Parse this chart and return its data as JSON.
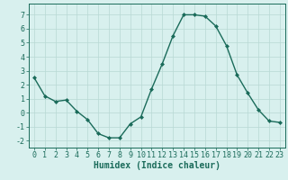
{
  "x": [
    0,
    1,
    2,
    3,
    4,
    5,
    6,
    7,
    8,
    9,
    10,
    11,
    12,
    13,
    14,
    15,
    16,
    17,
    18,
    19,
    20,
    21,
    22,
    23
  ],
  "y": [
    2.5,
    1.2,
    0.8,
    0.9,
    0.1,
    -0.5,
    -1.5,
    -1.8,
    -1.8,
    -0.8,
    -0.3,
    1.7,
    3.5,
    5.5,
    7.0,
    7.0,
    6.9,
    6.2,
    4.8,
    2.7,
    1.4,
    0.2,
    -0.6,
    -0.7
  ],
  "line_color": "#1a6b5a",
  "marker": "D",
  "markersize": 2,
  "linewidth": 1.0,
  "bg_color": "#d8f0ee",
  "grid_color": "#b8d8d4",
  "xlabel": "Humidex (Indice chaleur)",
  "xlim": [
    -0.5,
    23.5
  ],
  "ylim": [
    -2.5,
    7.8
  ],
  "yticks": [
    -2,
    -1,
    0,
    1,
    2,
    3,
    4,
    5,
    6,
    7
  ],
  "xticks": [
    0,
    1,
    2,
    3,
    4,
    5,
    6,
    7,
    8,
    9,
    10,
    11,
    12,
    13,
    14,
    15,
    16,
    17,
    18,
    19,
    20,
    21,
    22,
    23
  ],
  "tick_fontsize": 6,
  "xlabel_fontsize": 7,
  "tick_color": "#1a6b5a",
  "axis_color": "#1a6b5a"
}
